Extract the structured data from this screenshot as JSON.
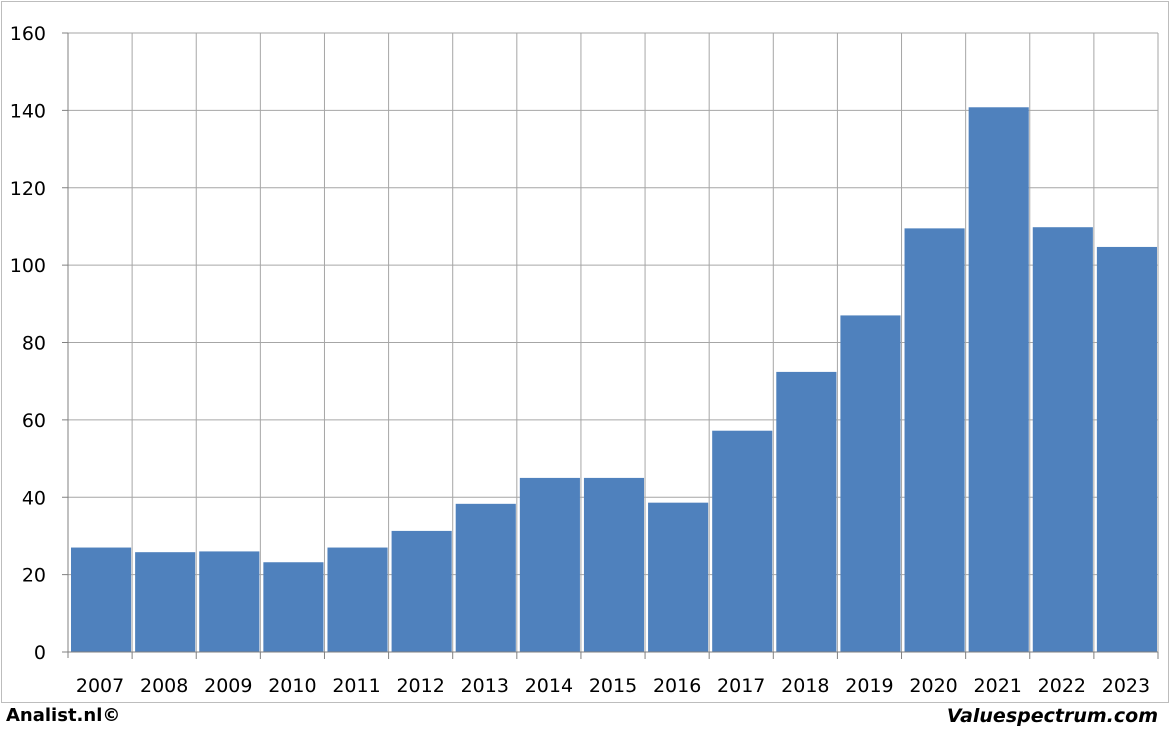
{
  "footer": {
    "left_brand": "Analist.nl©",
    "right_brand": "Valuespectrum.com"
  },
  "chart_data": {
    "type": "bar",
    "categories": [
      "2007",
      "2008",
      "2009",
      "2010",
      "2011",
      "2012",
      "2013",
      "2014",
      "2015",
      "2016",
      "2017",
      "2018",
      "2019",
      "2020",
      "2021",
      "2022",
      "2023"
    ],
    "values": [
      27,
      25.8,
      26,
      23.2,
      27,
      31.3,
      38.3,
      45,
      45,
      38.6,
      57.2,
      72.4,
      87,
      109.5,
      140.8,
      109.8,
      104.7
    ],
    "title": "",
    "xlabel": "",
    "ylabel": "",
    "ylim": [
      0,
      160
    ],
    "yticks": [
      0,
      20,
      40,
      60,
      80,
      100,
      120,
      140,
      160
    ],
    "grid": true,
    "legend": "none",
    "bar_color": "#4f81bd",
    "grid_color": "#a6a6a6"
  }
}
